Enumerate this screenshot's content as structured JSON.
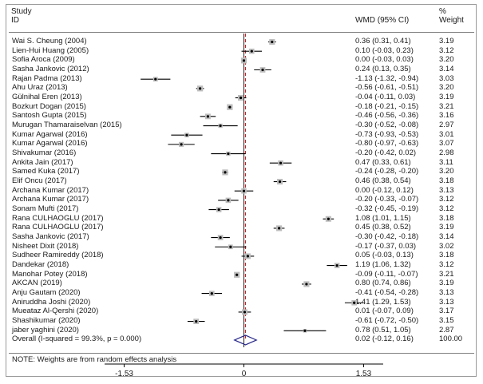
{
  "header": {
    "study_line1": "Study",
    "study_line2": "ID",
    "wmd_label": "WMD (95% CI)",
    "weight_line1": "%",
    "weight_line2": "Weight"
  },
  "footer_note": "NOTE: Weights are from random effects analysis",
  "chart_data": {
    "type": "forest",
    "effect_measure": "WMD (95% CI)",
    "x_ticks": [
      -1.53,
      0,
      1.53
    ],
    "x_tick_labels": [
      "-1.53",
      "0",
      "1.53"
    ],
    "xlim": [
      -1.78,
      1.78
    ],
    "reference_line": 0,
    "overall_line": 0.02,
    "studies": [
      {
        "name": "Wai S. Cheung (2004)",
        "est": 0.36,
        "lo": 0.31,
        "hi": 0.41,
        "ci": "0.36 (0.31, 0.41)",
        "weight": "3.19"
      },
      {
        "name": "Lien-Hui Huang (2005)",
        "est": 0.1,
        "lo": -0.03,
        "hi": 0.23,
        "ci": "0.10 (-0.03, 0.23)",
        "weight": "3.12"
      },
      {
        "name": "Sofia Aroca (2009)",
        "est": 0.0,
        "lo": -0.03,
        "hi": 0.03,
        "ci": "0.00 (-0.03, 0.03)",
        "weight": "3.20"
      },
      {
        "name": "Sasha Jankovic (2012)",
        "est": 0.24,
        "lo": 0.13,
        "hi": 0.35,
        "ci": "0.24 (0.13, 0.35)",
        "weight": "3.14"
      },
      {
        "name": "Rajan Padma (2013)",
        "est": -1.13,
        "lo": -1.32,
        "hi": -0.94,
        "ci": "-1.13 (-1.32, -0.94)",
        "weight": "3.03"
      },
      {
        "name": "Ahu Uraz (2013)",
        "est": -0.56,
        "lo": -0.61,
        "hi": -0.51,
        "ci": "-0.56 (-0.61, -0.51)",
        "weight": "3.20"
      },
      {
        "name": "Gülnihal Eren (2013)",
        "est": -0.04,
        "lo": -0.11,
        "hi": 0.03,
        "ci": "-0.04 (-0.11, 0.03)",
        "weight": "3.19"
      },
      {
        "name": "Bozkurt Dogan (2015)",
        "est": -0.18,
        "lo": -0.21,
        "hi": -0.15,
        "ci": "-0.18 (-0.21, -0.15)",
        "weight": "3.21"
      },
      {
        "name": "Santosh Gupta (2015)",
        "est": -0.46,
        "lo": -0.56,
        "hi": -0.36,
        "ci": "-0.46 (-0.56, -0.36)",
        "weight": "3.16"
      },
      {
        "name": "Murugan Thamaraiselvan (2015)",
        "est": -0.3,
        "lo": -0.52,
        "hi": -0.08,
        "ci": "-0.30 (-0.52, -0.08)",
        "weight": "2.97"
      },
      {
        "name": "Kumar Agarwal (2016)",
        "est": -0.73,
        "lo": -0.93,
        "hi": -0.53,
        "ci": "-0.73 (-0.93, -0.53)",
        "weight": "3.01"
      },
      {
        "name": "Kumar Agarwal (2016)",
        "est": -0.8,
        "lo": -0.97,
        "hi": -0.63,
        "ci": "-0.80 (-0.97, -0.63)",
        "weight": "3.07"
      },
      {
        "name": "Shivakumar (2016)",
        "est": -0.2,
        "lo": -0.42,
        "hi": 0.02,
        "ci": "-0.20 (-0.42, 0.02)",
        "weight": "2.98"
      },
      {
        "name": "Ankita Jain (2017)",
        "est": 0.47,
        "lo": 0.33,
        "hi": 0.61,
        "ci": "0.47 (0.33, 0.61)",
        "weight": "3.11"
      },
      {
        "name": "Samed Kuka (2017)",
        "est": -0.24,
        "lo": -0.28,
        "hi": -0.2,
        "ci": "-0.24 (-0.28, -0.20)",
        "weight": "3.20"
      },
      {
        "name": "Elif Oncu (2017)",
        "est": 0.46,
        "lo": 0.38,
        "hi": 0.54,
        "ci": "0.46 (0.38, 0.54)",
        "weight": "3.18"
      },
      {
        "name": "Archana Kumar (2017)",
        "est": 0.0,
        "lo": -0.12,
        "hi": 0.12,
        "ci": "0.00 (-0.12, 0.12)",
        "weight": "3.13"
      },
      {
        "name": "Archana Kumar (2017)",
        "est": -0.2,
        "lo": -0.33,
        "hi": -0.07,
        "ci": "-0.20 (-0.33, -0.07)",
        "weight": "3.12"
      },
      {
        "name": "Sonam Mufti (2017)",
        "est": -0.32,
        "lo": -0.45,
        "hi": -0.19,
        "ci": "-0.32 (-0.45, -0.19)",
        "weight": "3.12"
      },
      {
        "name": "Rana CULHAOGLU (2017)",
        "est": 1.08,
        "lo": 1.01,
        "hi": 1.15,
        "ci": "1.08 (1.01, 1.15)",
        "weight": "3.18"
      },
      {
        "name": "Rana CULHAOGLU (2017)",
        "est": 0.45,
        "lo": 0.38,
        "hi": 0.52,
        "ci": "0.45 (0.38, 0.52)",
        "weight": "3.19"
      },
      {
        "name": "Sasha Jankovic (2017)",
        "est": -0.3,
        "lo": -0.42,
        "hi": -0.18,
        "ci": "-0.30 (-0.42, -0.18)",
        "weight": "3.14"
      },
      {
        "name": "Nisheet Dixit (2018)",
        "est": -0.17,
        "lo": -0.37,
        "hi": 0.03,
        "ci": "-0.17 (-0.37, 0.03)",
        "weight": "3.02"
      },
      {
        "name": "Sudheer Ramireddy (2018)",
        "est": 0.05,
        "lo": -0.03,
        "hi": 0.13,
        "ci": "0.05 (-0.03, 0.13)",
        "weight": "3.18"
      },
      {
        "name": "Dandekar (2018)",
        "est": 1.19,
        "lo": 1.06,
        "hi": 1.32,
        "ci": "1.19 (1.06, 1.32)",
        "weight": "3.12"
      },
      {
        "name": "Manohar Potey (2018)",
        "est": -0.09,
        "lo": -0.11,
        "hi": -0.07,
        "ci": "-0.09 (-0.11, -0.07)",
        "weight": "3.21"
      },
      {
        "name": "AKCAN (2019)",
        "est": 0.8,
        "lo": 0.74,
        "hi": 0.86,
        "ci": "0.80 (0.74, 0.86)",
        "weight": "3.19"
      },
      {
        "name": "Anju Gautam (2020)",
        "est": -0.41,
        "lo": -0.54,
        "hi": -0.28,
        "ci": "-0.41 (-0.54, -0.28)",
        "weight": "3.13"
      },
      {
        "name": "Aniruddha Joshi (2020)",
        "est": 1.41,
        "lo": 1.29,
        "hi": 1.53,
        "ci": "1.41 (1.29, 1.53)",
        "weight": "3.13"
      },
      {
        "name": "Mueataz Al-Qershi (2020)",
        "est": 0.01,
        "lo": -0.07,
        "hi": 0.09,
        "ci": "0.01 (-0.07, 0.09)",
        "weight": "3.17"
      },
      {
        "name": "Shashikumar (2020)",
        "est": -0.61,
        "lo": -0.72,
        "hi": -0.5,
        "ci": "-0.61 (-0.72, -0.50)",
        "weight": "3.15"
      },
      {
        "name": "jaber yaghini (2020)",
        "est": 0.78,
        "lo": 0.51,
        "hi": 1.05,
        "ci": "0.78 (0.51, 1.05)",
        "weight": "2.87"
      }
    ],
    "overall": {
      "name": "Overall  (I-squared = 99.3%, p = 0.000)",
      "est": 0.02,
      "lo": -0.12,
      "hi": 0.16,
      "ci": "0.02 (-0.12, 0.16)",
      "weight": "100.00"
    }
  }
}
